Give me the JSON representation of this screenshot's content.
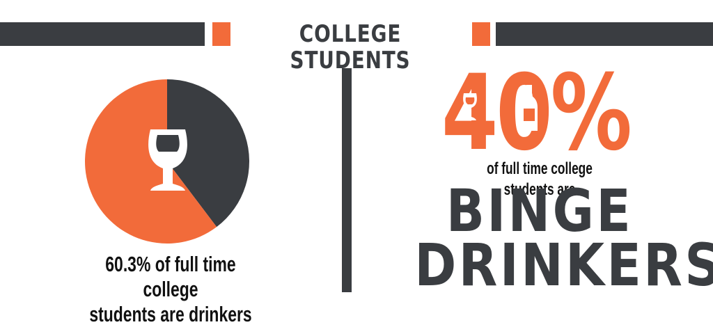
{
  "header": {
    "title": "COLLEGE STUDENTS"
  },
  "colors": {
    "accent": "#f26b3a",
    "dark": "#3a3d41"
  },
  "left": {
    "chart_data": {
      "type": "pie",
      "slices": [
        {
          "value": 60.3,
          "color": "#f26b3a"
        },
        {
          "value": 39.7,
          "color": "#3a3d41"
        }
      ]
    },
    "center_icon": "wine-glass-icon",
    "caption_line1": "60.3% of full time college",
    "caption_line2": "students are drinkers"
  },
  "right": {
    "big_percent": "40%",
    "icons": [
      "wine-glass-icon",
      "bottle-icon"
    ],
    "subtitle": "of full time college students are",
    "word1": "BINGE",
    "word2": "DRINKERS"
  }
}
